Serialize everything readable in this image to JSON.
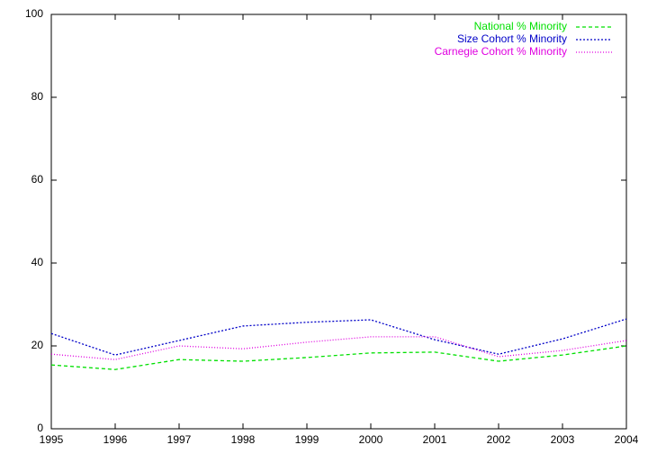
{
  "chart_data": {
    "type": "line",
    "x": [
      1995,
      1996,
      1997,
      1998,
      1999,
      2000,
      2001,
      2002,
      2003,
      2004
    ],
    "xlim": [
      1995,
      2004
    ],
    "xticks": [
      1995,
      1996,
      1997,
      1998,
      1999,
      2000,
      2001,
      2002,
      2003,
      2004
    ],
    "ylim": [
      0,
      100
    ],
    "yticks": [
      0,
      20,
      40,
      60,
      80,
      100
    ],
    "legend": "top-right",
    "series": [
      {
        "name": "National % Minority",
        "color": "#00e000",
        "values": [
          15.4,
          14.3,
          16.7,
          16.3,
          17.2,
          18.3,
          18.5,
          16.3,
          17.8,
          20.0
        ]
      },
      {
        "name": "Size Cohort % Minority",
        "color": "#0000c8",
        "values": [
          23.0,
          17.8,
          21.3,
          24.8,
          25.7,
          26.3,
          21.5,
          18.0,
          21.7,
          26.5
        ]
      },
      {
        "name": "Carnegie Cohort % Minority",
        "color": "#e000e0",
        "values": [
          18.0,
          16.7,
          20.0,
          19.3,
          20.9,
          22.2,
          22.2,
          17.4,
          18.9,
          21.3
        ]
      }
    ]
  }
}
